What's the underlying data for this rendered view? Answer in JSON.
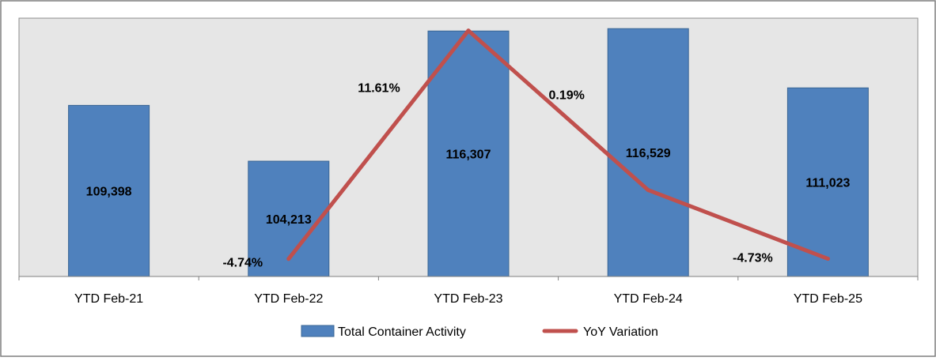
{
  "chart_data": {
    "type": "bar",
    "categories": [
      "YTD Feb-21",
      "YTD Feb-22",
      "YTD Feb-23",
      "YTD Feb-24",
      "YTD Feb-25"
    ],
    "series": [
      {
        "name": "Total Container Activity",
        "type": "bar",
        "color": "#4F81BD",
        "values": [
          109398,
          104213,
          116307,
          116529,
          111023
        ],
        "labels": [
          "109,398",
          "104,213",
          "116,307",
          "116,529",
          "111,023"
        ]
      },
      {
        "name": "YoY Variation",
        "type": "line",
        "color": "#C0504D",
        "values": [
          null,
          -4.74,
          11.61,
          0.19,
          -4.73
        ],
        "labels": [
          "",
          "-4.74%",
          "11.61%",
          "0.19%",
          "-4.73%"
        ]
      }
    ],
    "bar_axis_range": [
      93500,
      117500
    ],
    "line_axis_range": [
      -6,
      12.5
    ],
    "grid": false,
    "legend_position": "bottom",
    "plot_background": "#E6E6E6",
    "border_color": "#7F7F7F"
  }
}
